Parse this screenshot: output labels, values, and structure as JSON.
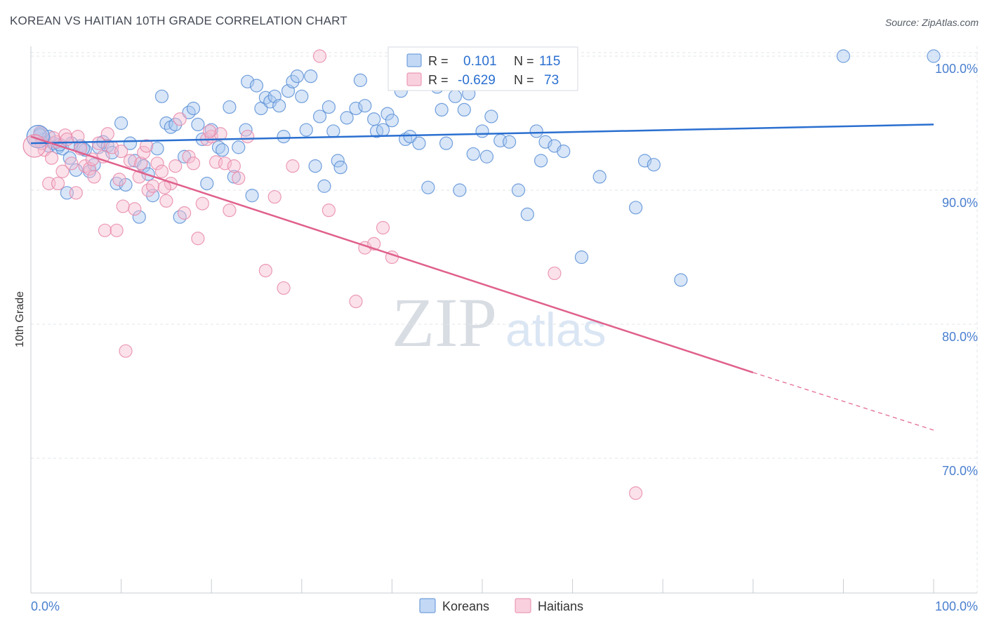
{
  "title": "KOREAN VS HAITIAN 10TH GRADE CORRELATION CHART",
  "source": "Source: ZipAtlas.com",
  "colors": {
    "korean_fill": "#a8c8f0",
    "korean_stroke": "#5b8fd6",
    "korean_line": "#2a6fd0",
    "haitian_fill": "#f6bcd0",
    "haitian_stroke": "#e88aaa",
    "haitian_line": "#e0608c",
    "grid": "#e2e6ea",
    "tick_label": "#4a7fcf",
    "watermark": "#d8dde3"
  },
  "watermark": {
    "zip": "ZIP",
    "atlas": "atlas"
  },
  "legend_box": {
    "rows": [
      {
        "r_label": "R =",
        "r_value": "0.101",
        "n_label": "N =",
        "n_value": "115"
      },
      {
        "r_label": "R =",
        "r_value": "-0.629",
        "n_label": "N =",
        "n_value": "73"
      }
    ]
  },
  "chart_data": {
    "type": "scatter",
    "title": "KOREAN VS HAITIAN 10TH GRADE CORRELATION CHART",
    "xlabel": "",
    "ylabel": "10th Grade",
    "xlim": [
      0,
      100
    ],
    "ylim": [
      60,
      101.5
    ],
    "x_tick_labels": [
      "0.0%",
      "100.0%"
    ],
    "y_ticks": [
      70,
      80,
      90,
      100
    ],
    "y_tick_labels": [
      "70.0%",
      "80.0%",
      "90.0%",
      "100.0%"
    ],
    "grid": true,
    "legend_position": "bottom-center",
    "series": [
      {
        "name": "Koreans",
        "r": 0.101,
        "n": 115,
        "trend": {
          "x": [
            0,
            100
          ],
          "y": [
            93.5,
            94.9
          ]
        },
        "points": [
          [
            1,
            94.2
          ],
          [
            1.5,
            93.8
          ],
          [
            2,
            93.3
          ],
          [
            2.5,
            93.5
          ],
          [
            3,
            93.2
          ],
          [
            3.5,
            93.1
          ],
          [
            4,
            89.8
          ],
          [
            4.3,
            92.4
          ],
          [
            4.5,
            93.5
          ],
          [
            5,
            91.5
          ],
          [
            5.5,
            93.3
          ],
          [
            6,
            93.0
          ],
          [
            6.5,
            91.4
          ],
          [
            7,
            91.9
          ],
          [
            7.5,
            93.2
          ],
          [
            8,
            93.6
          ],
          [
            8.5,
            93.3
          ],
          [
            9,
            92.8
          ],
          [
            9.5,
            90.5
          ],
          [
            10,
            95.0
          ],
          [
            10.5,
            90.4
          ],
          [
            11,
            93.5
          ],
          [
            11.5,
            92.2
          ],
          [
            12,
            88.0
          ],
          [
            12.5,
            91.8
          ],
          [
            13,
            91.2
          ],
          [
            13.5,
            89.6
          ],
          [
            14,
            93.1
          ],
          [
            14.5,
            97.0
          ],
          [
            15,
            95.0
          ],
          [
            15.5,
            94.7
          ],
          [
            16,
            94.9
          ],
          [
            16.5,
            88.0
          ],
          [
            17,
            92.5
          ],
          [
            17.5,
            95.8
          ],
          [
            18,
            96.1
          ],
          [
            18.5,
            94.9
          ],
          [
            19,
            93.8
          ],
          [
            19.5,
            90.5
          ],
          [
            20,
            94.5
          ],
          [
            20.8,
            93.2
          ],
          [
            21.2,
            93.0
          ],
          [
            22,
            96.2
          ],
          [
            22.5,
            91.0
          ],
          [
            23,
            93.2
          ],
          [
            23.8,
            94.5
          ],
          [
            24,
            98.1
          ],
          [
            24.5,
            89.6
          ],
          [
            25,
            97.8
          ],
          [
            25.5,
            96.1
          ],
          [
            26,
            96.9
          ],
          [
            26.5,
            96.6
          ],
          [
            27,
            97.0
          ],
          [
            27.5,
            96.3
          ],
          [
            28,
            94.0
          ],
          [
            28.5,
            97.4
          ],
          [
            29,
            98.1
          ],
          [
            29.5,
            98.5
          ],
          [
            30,
            97.0
          ],
          [
            30.5,
            94.5
          ],
          [
            31,
            98.5
          ],
          [
            31.5,
            91.8
          ],
          [
            32,
            95.5
          ],
          [
            32.5,
            90.3
          ],
          [
            33,
            96.2
          ],
          [
            33.5,
            94.4
          ],
          [
            34,
            92.2
          ],
          [
            34.3,
            91.7
          ],
          [
            35,
            95.4
          ],
          [
            36,
            96.1
          ],
          [
            36.5,
            98.2
          ],
          [
            37,
            96.3
          ],
          [
            38,
            95.3
          ],
          [
            38.3,
            94.4
          ],
          [
            39,
            94.5
          ],
          [
            39.5,
            95.7
          ],
          [
            40,
            95.2
          ],
          [
            40.5,
            100
          ],
          [
            41,
            97.4
          ],
          [
            41.5,
            93.8
          ],
          [
            42,
            94.0
          ],
          [
            43,
            93.5
          ],
          [
            44,
            90.2
          ],
          [
            45,
            97.7
          ],
          [
            45.5,
            96.0
          ],
          [
            46,
            93.5
          ],
          [
            47,
            97.0
          ],
          [
            47.5,
            90.0
          ],
          [
            48,
            96.0
          ],
          [
            48.5,
            97.2
          ],
          [
            49,
            92.7
          ],
          [
            50,
            94.4
          ],
          [
            50.5,
            92.5
          ],
          [
            51,
            95.5
          ],
          [
            52,
            93.7
          ],
          [
            53,
            93.6
          ],
          [
            54,
            90.0
          ],
          [
            55,
            88.2
          ],
          [
            56,
            94.4
          ],
          [
            56.5,
            92.2
          ],
          [
            57,
            93.6
          ],
          [
            58,
            93.3
          ],
          [
            59,
            92.9
          ],
          [
            61,
            85.0
          ],
          [
            63,
            91.0
          ],
          [
            67,
            88.7
          ],
          [
            68,
            92.2
          ],
          [
            69,
            91.9
          ],
          [
            72,
            83.3
          ],
          [
            100,
            100
          ],
          [
            90,
            100
          ],
          [
            1,
            94.1
          ],
          [
            2,
            94.0
          ],
          [
            3.2,
            93.4
          ],
          [
            5.8,
            93.1
          ]
        ]
      },
      {
        "name": "Haitians",
        "r": -0.629,
        "n": 73,
        "trend": {
          "x": [
            0,
            80
          ],
          "y": [
            94.0,
            76.4
          ]
        },
        "trend_dashed": {
          "x": [
            80,
            100
          ],
          "y": [
            76.4,
            72.1
          ]
        },
        "points": [
          [
            0.5,
            93.7
          ],
          [
            1,
            94.3
          ],
          [
            1.5,
            93.0
          ],
          [
            2,
            90.5
          ],
          [
            2.3,
            92.4
          ],
          [
            2.8,
            93.6
          ],
          [
            3,
            90.5
          ],
          [
            3.5,
            91.4
          ],
          [
            3.8,
            94.1
          ],
          [
            4,
            93.8
          ],
          [
            4.5,
            92.0
          ],
          [
            5,
            89.8
          ],
          [
            5.2,
            94.0
          ],
          [
            5.5,
            93.1
          ],
          [
            6,
            91.8
          ],
          [
            6.5,
            91.6
          ],
          [
            7,
            91.0
          ],
          [
            7.5,
            93.5
          ],
          [
            8,
            92.5
          ],
          [
            8.2,
            87.0
          ],
          [
            8.5,
            94.2
          ],
          [
            9,
            93.2
          ],
          [
            9.5,
            87.0
          ],
          [
            10,
            92.9
          ],
          [
            10.2,
            88.8
          ],
          [
            10.5,
            78.0
          ],
          [
            11,
            92.2
          ],
          [
            11.5,
            88.6
          ],
          [
            12,
            91.0
          ],
          [
            12.2,
            92.0
          ],
          [
            12.5,
            92.8
          ],
          [
            12.8,
            93.3
          ],
          [
            13,
            90.0
          ],
          [
            13.5,
            90.3
          ],
          [
            14,
            92.0
          ],
          [
            14.5,
            91.4
          ],
          [
            15,
            89.2
          ],
          [
            15.5,
            90.5
          ],
          [
            16,
            91.8
          ],
          [
            16.5,
            95.3
          ],
          [
            17,
            88.3
          ],
          [
            17.5,
            92.5
          ],
          [
            18,
            92.0
          ],
          [
            18.5,
            86.4
          ],
          [
            19,
            89.0
          ],
          [
            19.5,
            93.8
          ],
          [
            20,
            94.0
          ],
          [
            20.5,
            92.1
          ],
          [
            21,
            94.2
          ],
          [
            21.5,
            92.0
          ],
          [
            22,
            88.5
          ],
          [
            22.5,
            91.8
          ],
          [
            23,
            90.9
          ],
          [
            26,
            84.0
          ],
          [
            27,
            89.5
          ],
          [
            28,
            82.7
          ],
          [
            29,
            91.8
          ],
          [
            32,
            100
          ],
          [
            33,
            88.5
          ],
          [
            36,
            81.7
          ],
          [
            37,
            85.7
          ],
          [
            38,
            86.0
          ],
          [
            39,
            87.2
          ],
          [
            40,
            85.0
          ],
          [
            58,
            83.8
          ],
          [
            67,
            67.4
          ],
          [
            1.2,
            93.5
          ],
          [
            2.5,
            93.9
          ],
          [
            6.8,
            92.3
          ],
          [
            9.8,
            90.8
          ],
          [
            14.8,
            90.2
          ],
          [
            19.8,
            94.4
          ],
          [
            24,
            94.0
          ]
        ]
      }
    ]
  }
}
